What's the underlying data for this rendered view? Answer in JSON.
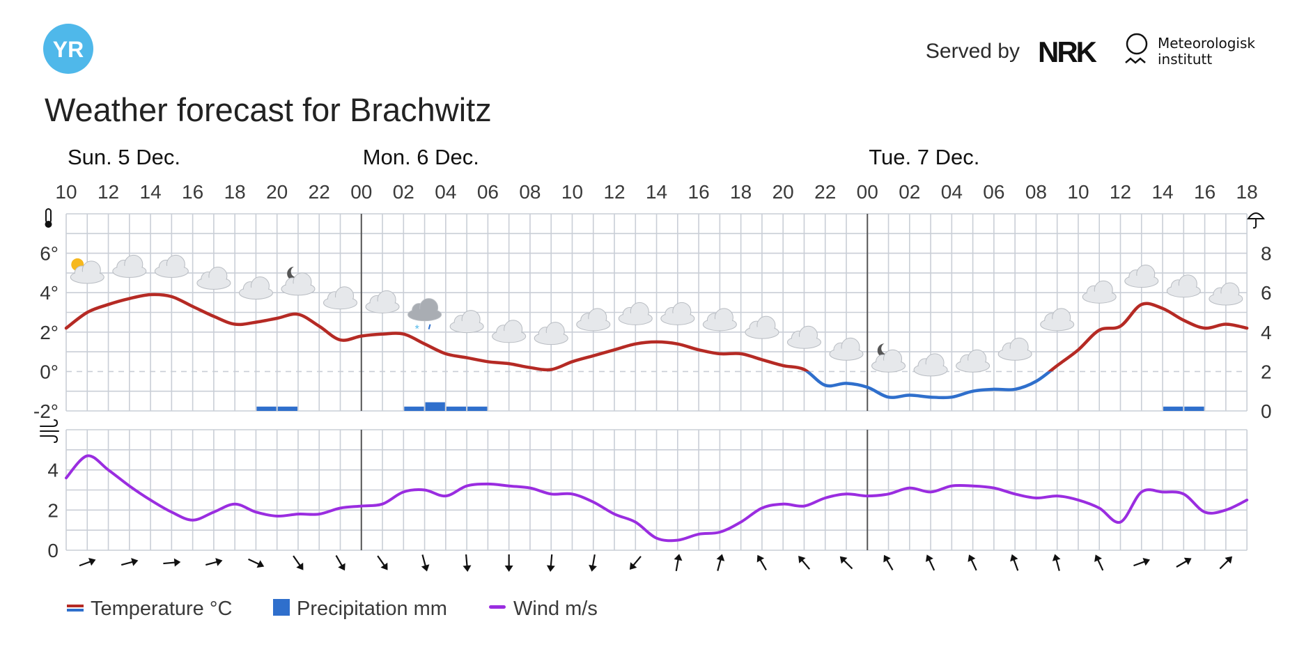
{
  "header": {
    "logo_text": "YR",
    "served_by": "Served by",
    "nrk_text": "NRK",
    "met_text_line1": "Meteorologisk",
    "met_text_line2": "institutt",
    "title": "Weather forecast for Brachwitz"
  },
  "colors": {
    "temp_warm": "#b52a24",
    "temp_cold": "#2f6fcc",
    "precip": "#2f6fcc",
    "wind": "#9a2de0",
    "grid": "#c9ced6",
    "brand": "#4fb8ea"
  },
  "chart_data": [
    {
      "type": "line",
      "name": "temperature-precipitation",
      "days": [
        {
          "label": "Sun. 5 Dec.",
          "x": 0
        },
        {
          "label": "Mon. 6 Dec.",
          "x": 14
        },
        {
          "label": "Tue. 7 Dec.",
          "x": 38
        }
      ],
      "hour_labels": [
        "10",
        "12",
        "14",
        "16",
        "18",
        "20",
        "22",
        "00",
        "02",
        "04",
        "06",
        "08",
        "10",
        "12",
        "14",
        "16",
        "18",
        "20",
        "22",
        "00",
        "02",
        "04",
        "06",
        "08",
        "10",
        "12",
        "14",
        "16",
        "18"
      ],
      "day_boundaries": [
        14,
        38
      ],
      "xlim": [
        0,
        56
      ],
      "y_left": {
        "ticks": [
          -2,
          0,
          2,
          4,
          6
        ],
        "tick_labels": [
          "-2°",
          "0°",
          "2°",
          "4°",
          "6°"
        ],
        "ylim": [
          -2,
          8
        ]
      },
      "y_right": {
        "ticks": [
          0,
          2,
          4,
          6,
          8
        ],
        "tick_labels": [
          "0",
          "2",
          "4",
          "6",
          "8"
        ]
      },
      "legend": [
        {
          "label": "Temperature °C"
        },
        {
          "label": "Precipitation mm"
        },
        {
          "label": "Wind m/s"
        }
      ],
      "temperature": {
        "x": [
          0,
          1,
          2,
          3,
          4,
          5,
          6,
          7,
          8,
          9,
          10,
          11,
          12,
          13,
          14,
          15,
          16,
          17,
          18,
          19,
          20,
          21,
          22,
          23,
          24,
          25,
          26,
          27,
          28,
          29,
          30,
          31,
          32,
          33,
          34,
          35,
          36,
          37,
          38,
          39,
          40,
          41,
          42,
          43,
          44,
          45,
          46,
          47,
          48,
          49,
          50,
          51,
          52,
          53,
          54,
          55,
          56
        ],
        "values": [
          2.2,
          3.0,
          3.4,
          3.7,
          3.9,
          3.8,
          3.3,
          2.8,
          2.4,
          2.5,
          2.7,
          2.9,
          2.3,
          1.6,
          1.8,
          1.9,
          1.9,
          1.4,
          0.9,
          0.7,
          0.5,
          0.4,
          0.2,
          0.1,
          0.5,
          0.8,
          1.1,
          1.4,
          1.5,
          1.4,
          1.1,
          0.9,
          0.9,
          0.6,
          0.3,
          0.1,
          -0.7,
          -0.6,
          -0.8,
          -1.3,
          -1.2,
          -1.3,
          -1.3,
          -1.0,
          -0.9,
          -0.9,
          -0.5,
          0.3,
          1.1,
          2.1,
          2.3,
          3.4,
          3.2,
          2.6,
          2.2,
          2.4,
          2.2
        ]
      },
      "precipitation": [
        {
          "x": 9,
          "value": 0.1
        },
        {
          "x": 10,
          "value": 0.1
        },
        {
          "x": 16,
          "value": 0.1
        },
        {
          "x": 17,
          "value": 0.2
        },
        {
          "x": 18,
          "value": 0.1
        },
        {
          "x": 19,
          "value": 0.1
        },
        {
          "x": 52,
          "value": 0.1
        },
        {
          "x": 53,
          "value": 0.1
        }
      ],
      "symbols": [
        {
          "x": 1,
          "y": 5.0,
          "icon": "partly-cloudy-sun-icon"
        },
        {
          "x": 3,
          "y": 5.3,
          "icon": "cloud-icon"
        },
        {
          "x": 5,
          "y": 5.3,
          "icon": "cloud-icon"
        },
        {
          "x": 7,
          "y": 4.7,
          "icon": "cloud-icon"
        },
        {
          "x": 9,
          "y": 4.2,
          "icon": "cloud-icon"
        },
        {
          "x": 11,
          "y": 4.4,
          "icon": "partly-cloudy-moon-icon"
        },
        {
          "x": 13,
          "y": 3.7,
          "icon": "cloud-icon"
        },
        {
          "x": 15,
          "y": 3.5,
          "icon": "cloud-icon"
        },
        {
          "x": 17,
          "y": 3.1,
          "icon": "sleet-icon"
        },
        {
          "x": 19,
          "y": 2.5,
          "icon": "cloud-icon"
        },
        {
          "x": 21,
          "y": 2.0,
          "icon": "cloud-icon"
        },
        {
          "x": 23,
          "y": 1.9,
          "icon": "cloud-icon"
        },
        {
          "x": 25,
          "y": 2.6,
          "icon": "cloud-icon"
        },
        {
          "x": 27,
          "y": 2.9,
          "icon": "cloud-icon"
        },
        {
          "x": 29,
          "y": 2.9,
          "icon": "cloud-icon"
        },
        {
          "x": 31,
          "y": 2.6,
          "icon": "cloud-icon"
        },
        {
          "x": 33,
          "y": 2.2,
          "icon": "cloud-icon"
        },
        {
          "x": 35,
          "y": 1.7,
          "icon": "cloud-icon"
        },
        {
          "x": 37,
          "y": 1.1,
          "icon": "cloud-icon"
        },
        {
          "x": 39,
          "y": 0.5,
          "icon": "partly-cloudy-moon-icon"
        },
        {
          "x": 41,
          "y": 0.3,
          "icon": "cloud-icon"
        },
        {
          "x": 43,
          "y": 0.5,
          "icon": "cloud-icon"
        },
        {
          "x": 45,
          "y": 1.1,
          "icon": "cloud-icon"
        },
        {
          "x": 47,
          "y": 2.6,
          "icon": "cloud-icon"
        },
        {
          "x": 49,
          "y": 4.0,
          "icon": "cloud-icon"
        },
        {
          "x": 51,
          "y": 4.8,
          "icon": "cloud-icon"
        },
        {
          "x": 53,
          "y": 4.3,
          "icon": "cloud-icon"
        },
        {
          "x": 55,
          "y": 3.9,
          "icon": "cloud-icon"
        }
      ]
    },
    {
      "type": "line",
      "name": "wind",
      "xlim": [
        0,
        56
      ],
      "y_left": {
        "ticks": [
          0,
          2,
          4
        ],
        "tick_labels": [
          "0",
          "2",
          "4"
        ],
        "ylim": [
          0,
          6
        ]
      },
      "wind_speed": {
        "x": [
          0,
          1,
          2,
          3,
          4,
          5,
          6,
          7,
          8,
          9,
          10,
          11,
          12,
          13,
          14,
          15,
          16,
          17,
          18,
          19,
          20,
          21,
          22,
          23,
          24,
          25,
          26,
          27,
          28,
          29,
          30,
          31,
          32,
          33,
          34,
          35,
          36,
          37,
          38,
          39,
          40,
          41,
          42,
          43,
          44,
          45,
          46,
          47,
          48,
          49,
          50,
          51,
          52,
          53,
          54,
          55,
          56
        ],
        "values": [
          3.6,
          4.7,
          4.0,
          3.2,
          2.5,
          1.9,
          1.5,
          1.9,
          2.3,
          1.9,
          1.7,
          1.8,
          1.8,
          2.1,
          2.2,
          2.3,
          2.9,
          3.0,
          2.7,
          3.2,
          3.3,
          3.2,
          3.1,
          2.8,
          2.8,
          2.4,
          1.8,
          1.4,
          0.6,
          0.5,
          0.8,
          0.9,
          1.4,
          2.1,
          2.3,
          2.2,
          2.6,
          2.8,
          2.7,
          2.8,
          3.1,
          2.9,
          3.2,
          3.2,
          3.1,
          2.8,
          2.6,
          2.7,
          2.5,
          2.1,
          1.4,
          2.9,
          2.9,
          2.8,
          1.9,
          2.0,
          2.5
        ]
      },
      "wind_arrows": [
        {
          "x": 1,
          "direction_deg": 250
        },
        {
          "x": 3,
          "direction_deg": 255
        },
        {
          "x": 5,
          "direction_deg": 265
        },
        {
          "x": 7,
          "direction_deg": 255
        },
        {
          "x": 9,
          "direction_deg": 295
        },
        {
          "x": 11,
          "direction_deg": 325
        },
        {
          "x": 13,
          "direction_deg": 330
        },
        {
          "x": 15,
          "direction_deg": 325
        },
        {
          "x": 17,
          "direction_deg": 345
        },
        {
          "x": 19,
          "direction_deg": 355
        },
        {
          "x": 21,
          "direction_deg": 0
        },
        {
          "x": 23,
          "direction_deg": 5
        },
        {
          "x": 25,
          "direction_deg": 10
        },
        {
          "x": 27,
          "direction_deg": 40
        },
        {
          "x": 29,
          "direction_deg": 190
        },
        {
          "x": 31,
          "direction_deg": 195
        },
        {
          "x": 33,
          "direction_deg": 150
        },
        {
          "x": 35,
          "direction_deg": 140
        },
        {
          "x": 37,
          "direction_deg": 135
        },
        {
          "x": 39,
          "direction_deg": 150
        },
        {
          "x": 41,
          "direction_deg": 155
        },
        {
          "x": 43,
          "direction_deg": 155
        },
        {
          "x": 45,
          "direction_deg": 160
        },
        {
          "x": 47,
          "direction_deg": 165
        },
        {
          "x": 49,
          "direction_deg": 155
        },
        {
          "x": 51,
          "direction_deg": 250
        },
        {
          "x": 53,
          "direction_deg": 240
        },
        {
          "x": 55,
          "direction_deg": 225
        }
      ]
    }
  ]
}
